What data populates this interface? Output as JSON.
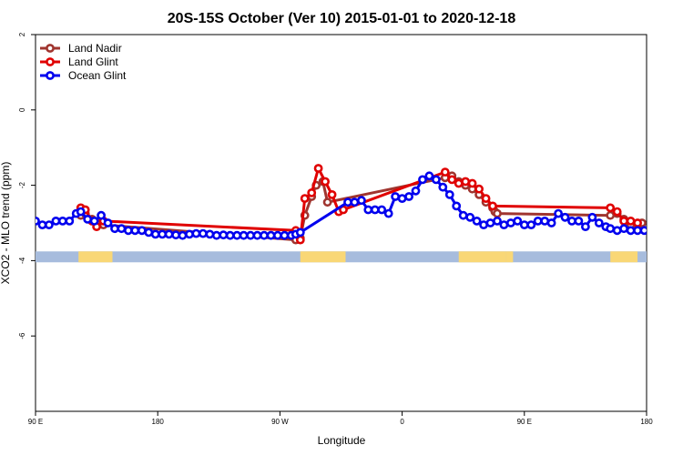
{
  "colors": {
    "land_nadir": "#A0352F",
    "land_glint": "#E00000",
    "ocean_glint": "#0000EE",
    "ocean_band": "#A7BCDD",
    "land_band": "#F9D776"
  },
  "chart_data": {
    "type": "line",
    "title": "20S-15S October (Ver 10)   2015-01-01 to 2020-12-18",
    "xlabel": "Longitude",
    "ylabel": "XCO2 - MLO trend (ppm)",
    "xlim": [
      -90,
      180
    ],
    "ylim": [
      -8,
      2
    ],
    "x_ticks": [
      {
        "value": -90,
        "label": "90 E"
      },
      {
        "value": -36,
        "label": "180"
      },
      {
        "value": 18,
        "label": "90 W"
      },
      {
        "value": 72,
        "label": "0"
      },
      {
        "value": 126,
        "label": "90 E"
      },
      {
        "value": 180,
        "label": "180"
      }
    ],
    "y_ticks": [
      {
        "value": 2,
        "label": "2"
      },
      {
        "value": 0,
        "label": "0"
      },
      {
        "value": -2,
        "label": "-2"
      },
      {
        "value": -4,
        "label": "-4"
      },
      {
        "value": -6,
        "label": "-6"
      }
    ],
    "grid": false,
    "legend_position": "top-left",
    "surface_band": {
      "y": -3.9,
      "land_segments": [
        [
          -71,
          -56
        ],
        [
          27,
          47
        ],
        [
          97,
          118
        ],
        [
          118,
          121
        ],
        [
          164,
          176
        ]
      ]
    },
    "series": [
      {
        "name": "Land Nadir",
        "color_key": "land_nadir",
        "x": [
          -70,
          -68,
          -65,
          -63,
          -60,
          25,
          27,
          29,
          32,
          34,
          37,
          39,
          91,
          94,
          97,
          100,
          103,
          106,
          109,
          112,
          113,
          114,
          164,
          167,
          170,
          173,
          176,
          178
        ],
        "y": [
          -2.8,
          -2.75,
          -2.9,
          -3.0,
          -3.05,
          -3.45,
          -3.4,
          -2.8,
          -2.3,
          -2.0,
          -1.9,
          -2.45,
          -1.8,
          -1.75,
          -1.9,
          -2.0,
          -2.1,
          -2.25,
          -2.45,
          -2.6,
          -2.7,
          -2.75,
          -2.8,
          -2.75,
          -2.9,
          -3.05,
          -3.1,
          -3.0
        ]
      },
      {
        "name": "Land Glint",
        "color_key": "land_glint",
        "x": [
          -70,
          -68,
          -65,
          -63,
          -60,
          25,
          27,
          29,
          32,
          35,
          38,
          41,
          44,
          46,
          91,
          94,
          97,
          100,
          103,
          106,
          109,
          112,
          164,
          167,
          170,
          173,
          176
        ],
        "y": [
          -2.6,
          -2.65,
          -2.95,
          -3.1,
          -2.95,
          -3.2,
          -3.45,
          -2.35,
          -2.2,
          -1.55,
          -1.9,
          -2.25,
          -2.7,
          -2.65,
          -1.65,
          -1.85,
          -1.95,
          -1.9,
          -1.95,
          -2.1,
          -2.35,
          -2.55,
          -2.6,
          -2.7,
          -2.95,
          -2.95,
          -3.0
        ]
      },
      {
        "name": "Ocean Glint",
        "color_key": "ocean_glint",
        "x": [
          -90,
          -87,
          -84,
          -81,
          -78,
          -75,
          -72,
          -70,
          -67,
          -64,
          -61,
          -58,
          -55,
          -52,
          -49,
          -46,
          -43,
          -40,
          -37,
          -34,
          -31,
          -28,
          -25,
          -22,
          -19,
          -16,
          -13,
          -10,
          -7,
          -4,
          -1,
          2,
          5,
          8,
          11,
          14,
          17,
          20,
          23,
          25,
          27,
          48,
          51,
          54,
          57,
          60,
          63,
          66,
          69,
          72,
          75,
          78,
          81,
          84,
          87,
          90,
          93,
          96,
          99,
          102,
          105,
          108,
          111,
          114,
          117,
          120,
          123,
          126,
          129,
          132,
          135,
          138,
          141,
          144,
          147,
          150,
          153,
          156,
          159,
          162,
          164,
          167,
          170,
          173,
          176,
          179,
          182,
          185,
          188,
          191,
          194,
          197,
          200,
          203
        ],
        "y": [
          -2.95,
          -3.05,
          -3.05,
          -2.95,
          -2.95,
          -2.95,
          -2.75,
          -2.7,
          -2.9,
          -2.95,
          -2.8,
          -3.0,
          -3.15,
          -3.15,
          -3.2,
          -3.2,
          -3.2,
          -3.25,
          -3.3,
          -3.3,
          -3.3,
          -3.32,
          -3.33,
          -3.3,
          -3.28,
          -3.28,
          -3.3,
          -3.33,
          -3.32,
          -3.33,
          -3.33,
          -3.33,
          -3.33,
          -3.33,
          -3.33,
          -3.33,
          -3.33,
          -3.33,
          -3.33,
          -3.3,
          -3.25,
          -2.45,
          -2.45,
          -2.4,
          -2.65,
          -2.65,
          -2.65,
          -2.75,
          -2.3,
          -2.35,
          -2.3,
          -2.15,
          -1.85,
          -1.75,
          -1.85,
          -2.05,
          -2.25,
          -2.55,
          -2.8,
          -2.85,
          -2.95,
          -3.05,
          -3.0,
          -2.95,
          -3.05,
          -3.0,
          -2.95,
          -3.05,
          -3.05,
          -2.95,
          -2.95,
          -3.0,
          -2.75,
          -2.85,
          -2.95,
          -2.95,
          -3.1,
          -2.85,
          -3.0,
          -3.1,
          -3.15,
          -3.2,
          -3.15,
          -3.2,
          -3.2,
          -3.2,
          -3.2,
          -3.2,
          -3.2,
          -3.2,
          -3.2,
          -3.2,
          -3.2,
          -3.2
        ]
      }
    ]
  }
}
